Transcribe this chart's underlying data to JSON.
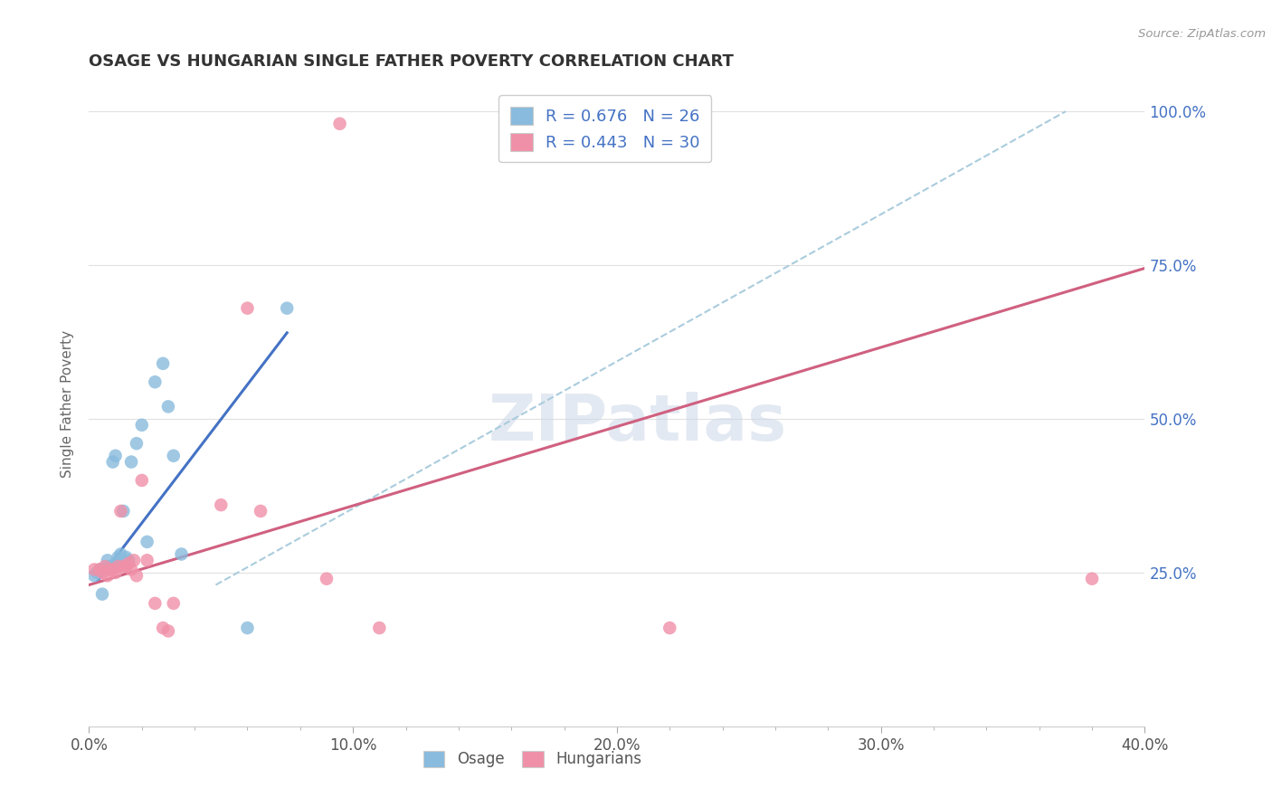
{
  "title": "OSAGE VS HUNGARIAN SINGLE FATHER POVERTY CORRELATION CHART",
  "source": "Source: ZipAtlas.com",
  "ylabel": "Single Father Poverty",
  "xlim": [
    0.0,
    0.4
  ],
  "ylim": [
    0.0,
    1.05
  ],
  "xtick_labels": [
    "0.0%",
    "",
    "",
    "",
    "",
    "10.0%",
    "",
    "",
    "",
    "",
    "20.0%",
    "",
    "",
    "",
    "",
    "30.0%",
    "",
    "",
    "",
    "",
    "40.0%"
  ],
  "xtick_vals": [
    0.0,
    0.02,
    0.04,
    0.06,
    0.08,
    0.1,
    0.12,
    0.14,
    0.16,
    0.18,
    0.2,
    0.22,
    0.24,
    0.26,
    0.28,
    0.3,
    0.32,
    0.34,
    0.36,
    0.38,
    0.4
  ],
  "xtick_major_labels": [
    "0.0%",
    "10.0%",
    "20.0%",
    "30.0%",
    "40.0%"
  ],
  "xtick_major_vals": [
    0.0,
    0.1,
    0.2,
    0.3,
    0.4
  ],
  "ytick_labels": [
    "25.0%",
    "50.0%",
    "75.0%",
    "100.0%"
  ],
  "ytick_vals": [
    0.25,
    0.5,
    0.75,
    1.0
  ],
  "legend_R_osage": "0.676",
  "legend_N_osage": "26",
  "legend_R_hung": "0.443",
  "legend_N_hung": "30",
  "legend_label_osage": "Osage",
  "legend_label_hung": "Hungarians",
  "color_osage": "#88bbdd",
  "color_hung": "#f090a8",
  "color_line_osage": "#4472c4",
  "color_line_hung": "#d06080",
  "color_dashed": "#aaccdd",
  "watermark": "ZIPatlas",
  "title_color": "#333333",
  "axis_tick_color": "#4472c4",
  "axis_label_color": "#666666",
  "osage_x": [
    0.002,
    0.003,
    0.004,
    0.005,
    0.006,
    0.007,
    0.008,
    0.009,
    0.01,
    0.01,
    0.011,
    0.012,
    0.013,
    0.014,
    0.015,
    0.016,
    0.018,
    0.02,
    0.022,
    0.025,
    0.028,
    0.03,
    0.032,
    0.035,
    0.06,
    0.075
  ],
  "osage_y": [
    0.245,
    0.25,
    0.255,
    0.215,
    0.255,
    0.27,
    0.26,
    0.43,
    0.265,
    0.44,
    0.275,
    0.28,
    0.35,
    0.275,
    0.27,
    0.43,
    0.46,
    0.49,
    0.3,
    0.56,
    0.59,
    0.52,
    0.44,
    0.28,
    0.16,
    0.68
  ],
  "hung_x": [
    0.002,
    0.004,
    0.005,
    0.006,
    0.007,
    0.008,
    0.009,
    0.01,
    0.011,
    0.012,
    0.013,
    0.014,
    0.015,
    0.016,
    0.017,
    0.018,
    0.02,
    0.022,
    0.025,
    0.028,
    0.03,
    0.032,
    0.05,
    0.06,
    0.065,
    0.09,
    0.095,
    0.11,
    0.22,
    0.38
  ],
  "hung_y": [
    0.255,
    0.255,
    0.25,
    0.26,
    0.245,
    0.255,
    0.255,
    0.25,
    0.26,
    0.35,
    0.26,
    0.26,
    0.265,
    0.255,
    0.27,
    0.245,
    0.4,
    0.27,
    0.2,
    0.16,
    0.155,
    0.2,
    0.36,
    0.68,
    0.35,
    0.24,
    0.98,
    0.16,
    0.16,
    0.24
  ],
  "blue_line_x": [
    0.003,
    0.075
  ],
  "blue_line_y": [
    0.235,
    0.64
  ],
  "pink_line_x": [
    0.0,
    0.4
  ],
  "pink_line_y": [
    0.23,
    0.745
  ],
  "dashed_line_x": [
    0.048,
    0.37
  ],
  "dashed_line_y": [
    0.23,
    1.0
  ],
  "background_color": "#ffffff",
  "grid_color": "#e0e0e0"
}
